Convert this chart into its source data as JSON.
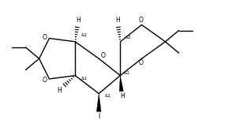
{
  "bg_color": "#ffffff",
  "line_color": "#000000",
  "lw": 1.0,
  "fig_width": 2.99,
  "fig_height": 1.57,
  "dpi": 100,
  "xlim": [
    0,
    9.5
  ],
  "ylim": [
    0,
    5.5
  ]
}
